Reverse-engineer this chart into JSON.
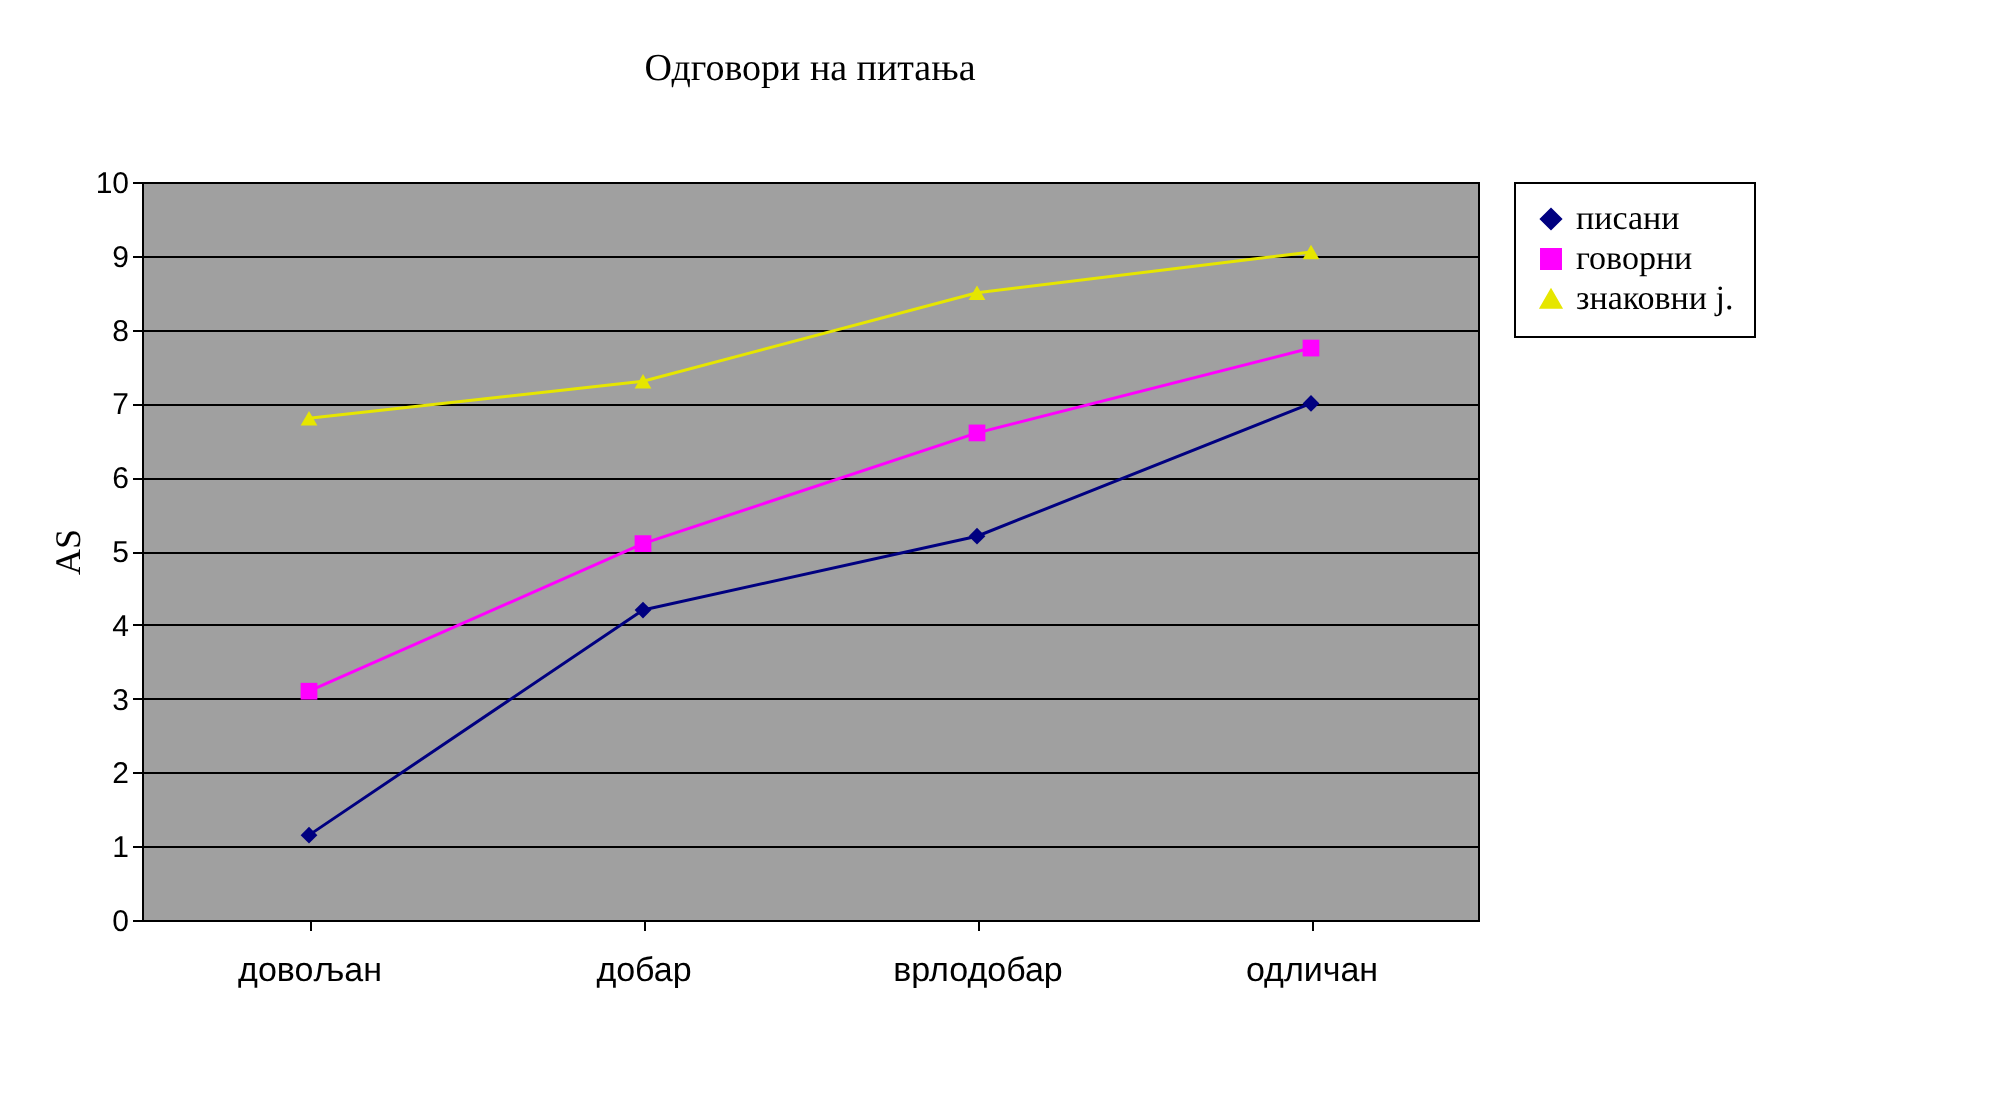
{
  "chart_data": {
    "type": "line",
    "title": "Одговори на питања",
    "ylabel": "AS",
    "categories": [
      "довољан",
      "добар",
      "врлодобар",
      "одличан"
    ],
    "series": [
      {
        "name": "писани",
        "color": "#000080",
        "marker": "diamond",
        "values": [
          1.15,
          4.2,
          5.2,
          7.0
        ]
      },
      {
        "name": "говорни",
        "color": "#ff00ff",
        "marker": "square",
        "values": [
          3.1,
          5.1,
          6.6,
          7.75
        ]
      },
      {
        "name": "знаковни ј.",
        "color": "#e6e600",
        "marker": "triangle",
        "values": [
          6.8,
          7.3,
          8.5,
          9.05
        ]
      }
    ],
    "ylim": [
      0,
      10
    ],
    "yticks": [
      0,
      1,
      2,
      3,
      4,
      5,
      6,
      7,
      8,
      9,
      10
    ],
    "grid": "y",
    "legend": "right",
    "line_style": "solid"
  }
}
